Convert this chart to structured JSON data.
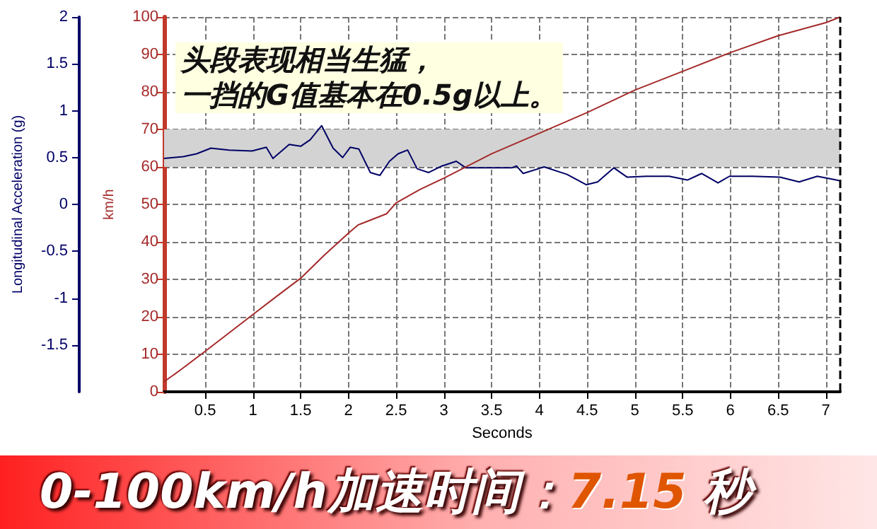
{
  "chart_data": {
    "type": "line",
    "xlabel": "Seconds",
    "ylabel": "Longitudinal Acceleration (g)",
    "y2label": "km/h",
    "annotations": [
      "头段表现相当生猛，",
      "一挡的G值基本在0.5g以上。",
      "0-100km/h加速时间：7.15 秒"
    ],
    "xlim": [
      0.07,
      7.15
    ],
    "xticks": [
      0.5,
      1,
      1.5,
      2,
      2.5,
      3,
      3.5,
      4,
      4.5,
      5,
      5.5,
      6,
      6.5,
      7
    ],
    "ylim": [
      -2,
      2
    ],
    "yticks": [
      -1.5,
      -1,
      -0.5,
      0,
      0.5,
      1,
      1.5,
      2
    ],
    "y2lim": [
      0,
      100
    ],
    "y2ticks": [
      0,
      10,
      20,
      30,
      40,
      50,
      60,
      70,
      80,
      90,
      100
    ],
    "grid": true,
    "marker": "none",
    "line_style": "solid",
    "bands": [
      {
        "axis": "y",
        "from": 0.4,
        "to": 0.8,
        "color": "#d3d3d3"
      }
    ],
    "ref_lines": [
      {
        "axis": "x",
        "value": 7.15,
        "color": "#000000",
        "line_style": "dashed"
      }
    ],
    "series": [
      {
        "color": "#000066",
        "x": [
          0.07,
          0.27,
          0.41,
          0.56,
          0.75,
          0.99,
          1.14,
          1.21,
          1.38,
          1.5,
          1.6,
          1.72,
          1.84,
          1.94,
          2.02,
          2.11,
          2.23,
          2.33,
          2.43,
          2.52,
          2.62,
          2.72,
          2.84,
          2.98,
          3.13,
          3.23,
          3.71,
          3.76,
          3.83,
          4.05,
          4.29,
          4.49,
          4.61,
          4.78,
          4.92,
          5.12,
          5.36,
          5.55,
          5.7,
          5.87,
          5.99,
          6.23,
          6.52,
          6.72,
          6.91,
          7.11,
          7.15
        ],
        "values": [
          0.49,
          0.51,
          0.54,
          0.6,
          0.58,
          0.57,
          0.61,
          0.49,
          0.64,
          0.62,
          0.69,
          0.84,
          0.6,
          0.5,
          0.61,
          0.59,
          0.34,
          0.31,
          0.46,
          0.54,
          0.58,
          0.38,
          0.34,
          0.41,
          0.46,
          0.39,
          0.39,
          0.41,
          0.33,
          0.4,
          0.32,
          0.21,
          0.24,
          0.39,
          0.29,
          0.3,
          0.3,
          0.26,
          0.33,
          0.23,
          0.3,
          0.3,
          0.29,
          0.24,
          0.3,
          0.26,
          0.25
        ]
      },
      {
        "color": "#a52a2a",
        "axis": "y2",
        "x": [
          0.07,
          0.25,
          0.5,
          0.75,
          1,
          1.25,
          1.5,
          1.75,
          2,
          2.1,
          2.25,
          2.4,
          2.5,
          2.75,
          3,
          3.5,
          4,
          4.5,
          5,
          5.5,
          6,
          6.5,
          7,
          7.15
        ],
        "values": [
          2.7,
          6,
          10.8,
          15.7,
          20.6,
          25.5,
          30.3,
          36.5,
          42.3,
          44.5,
          46,
          47.5,
          50.4,
          54,
          57,
          63.5,
          69,
          74.5,
          80.5,
          85.5,
          90.5,
          95,
          98.5,
          100
        ]
      }
    ]
  }
}
